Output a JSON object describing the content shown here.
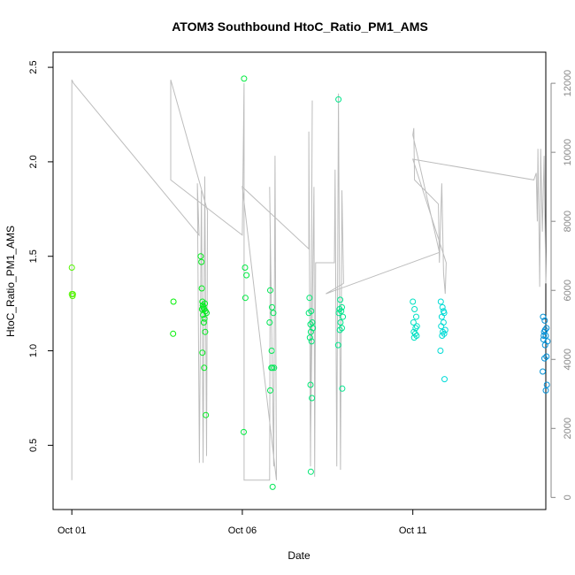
{
  "chart_data": {
    "type": "scatter",
    "title": "ATOM3 Southbound HtoC_Ratio_PM1_AMS",
    "xlabel": "Date",
    "ylabel": "HtoC_Ratio_PM1_AMS",
    "x_ticks": [
      "Oct 01",
      "Oct 06",
      "Oct 11"
    ],
    "x_tick_values": [
      1.0,
      6.0,
      11.0
    ],
    "xlim": [
      0.45,
      14.9
    ],
    "ylim": [
      0.16,
      2.58
    ],
    "y_ticks": [
      0.5,
      1.0,
      1.5,
      2.0,
      2.5
    ],
    "y2lim": [
      -350,
      12900
    ],
    "y2_ticks": [
      0,
      2000,
      4000,
      6000,
      8000,
      10000,
      12000
    ],
    "grid": false,
    "legend": "none",
    "colors": {
      "axis": "#000000",
      "secondary_axis": "#888888",
      "altitude_line": "#bdbdbd"
    },
    "series": [
      {
        "kind": "points",
        "x": [
          1.0,
          1.03,
          1.02,
          1.0,
          3.98,
          3.97,
          4.78,
          4.8,
          4.84,
          4.81,
          4.83,
          4.88,
          4.92,
          4.86,
          4.9,
          4.82,
          4.85,
          4.89,
          4.87,
          4.95,
          4.91,
          4.83,
          4.88,
          4.93,
          6.05,
          6.08,
          6.12,
          6.09,
          6.04,
          6.82,
          6.87,
          6.91,
          6.8,
          6.86,
          6.93,
          6.88,
          6.82,
          6.89,
          6.85,
          7.97,
          8.02,
          7.95,
          8.05,
          8.0,
          8.07,
          8.01,
          7.98,
          8.03,
          8.0,
          8.04,
          8.01,
          8.82,
          8.87,
          8.92,
          8.85,
          8.9,
          8.83,
          8.95,
          8.88,
          8.92,
          8.86,
          8.81,
          8.93
        ],
        "y": [
          1.44,
          1.3,
          1.29,
          1.3,
          1.26,
          1.09,
          1.5,
          1.47,
          1.24,
          1.33,
          1.26,
          1.22,
          1.21,
          1.23,
          1.25,
          1.22,
          1.19,
          1.17,
          1.15,
          1.2,
          1.1,
          0.99,
          0.91,
          0.66,
          2.44,
          1.44,
          1.4,
          1.28,
          0.57,
          1.32,
          1.23,
          1.2,
          1.15,
          1.0,
          0.91,
          0.91,
          0.79,
          0.28,
          0.91,
          1.28,
          1.21,
          1.2,
          1.15,
          1.14,
          1.12,
          1.1,
          1.07,
          1.05,
          0.82,
          0.75,
          0.36,
          2.33,
          1.27,
          1.23,
          1.22,
          1.21,
          1.2,
          1.18,
          1.15,
          1.12,
          1.11,
          1.03,
          0.8
        ],
        "color_scale": "green-to-blue by time"
      },
      {
        "kind": "points",
        "x": [
          11.0,
          11.05,
          11.1,
          11.02,
          11.12,
          11.08,
          11.03,
          11.07,
          11.11,
          11.04,
          11.82,
          11.87,
          11.92,
          11.85,
          11.9,
          11.83,
          11.95,
          11.88,
          11.92,
          11.86,
          11.81,
          11.93,
          11.9,
          14.82,
          14.87,
          14.92,
          14.85,
          14.9,
          14.83,
          14.95,
          14.88,
          14.92,
          14.86,
          14.81,
          14.93,
          14.9,
          14.84,
          14.88
        ],
        "y": [
          1.26,
          1.22,
          1.18,
          1.15,
          1.13,
          1.12,
          1.1,
          1.09,
          1.08,
          1.07,
          1.26,
          1.23,
          1.2,
          1.18,
          1.15,
          1.13,
          1.11,
          1.1,
          1.09,
          1.08,
          1.0,
          0.85,
          1.21,
          1.18,
          1.16,
          1.12,
          1.1,
          1.08,
          1.06,
          1.05,
          1.03,
          0.97,
          0.96,
          0.89,
          0.82,
          0.79,
          1.08,
          1.11
        ],
        "color_scale": "cyan-to-blue by time"
      }
    ],
    "altitude_line": {
      "name": "",
      "points": [
        [
          1.0,
          500
        ],
        [
          1.0,
          12100
        ],
        [
          1.05,
          12000
        ],
        [
          4.73,
          7600
        ],
        [
          4.68,
          9100
        ],
        [
          4.74,
          1000
        ],
        [
          4.8,
          8900
        ],
        [
          4.85,
          1000
        ],
        [
          4.9,
          9300
        ],
        [
          4.95,
          1200
        ],
        [
          4.98,
          8300
        ],
        [
          3.9,
          12100
        ],
        [
          3.9,
          9200
        ],
        [
          6.0,
          7600
        ],
        [
          6.05,
          12000
        ],
        [
          6.05,
          500
        ],
        [
          6.8,
          500
        ],
        [
          6.82,
          7600
        ],
        [
          6.8,
          9000
        ],
        [
          6.92,
          900
        ],
        [
          6.96,
          9900
        ],
        [
          7.0,
          500
        ],
        [
          6.0,
          9000
        ],
        [
          7.95,
          7200
        ],
        [
          7.95,
          10600
        ],
        [
          8.0,
          900
        ],
        [
          8.05,
          11500
        ],
        [
          8.0,
          1500
        ],
        [
          8.1,
          9000
        ],
        [
          8.12,
          600
        ],
        [
          8.15,
          6800
        ],
        [
          8.7,
          6800
        ],
        [
          8.72,
          9500
        ],
        [
          8.77,
          900
        ],
        [
          8.82,
          11700
        ],
        [
          8.88,
          800
        ],
        [
          8.92,
          8900
        ],
        [
          8.97,
          6200
        ],
        [
          8.45,
          5900
        ],
        [
          11.78,
          7100
        ],
        [
          11.0,
          10500
        ],
        [
          11.03,
          10700
        ],
        [
          11.05,
          9200
        ],
        [
          11.75,
          8500
        ],
        [
          11.78,
          6800
        ],
        [
          11.85,
          9100
        ],
        [
          11.9,
          6500
        ],
        [
          11.95,
          5900
        ],
        [
          11.98,
          6800
        ],
        [
          11.0,
          9800
        ],
        [
          14.55,
          9200
        ],
        [
          14.62,
          9400
        ],
        [
          14.65,
          8000
        ],
        [
          14.67,
          10100
        ],
        [
          14.72,
          6100
        ],
        [
          14.75,
          10100
        ],
        [
          14.8,
          7700
        ],
        [
          14.85,
          9900
        ],
        [
          14.9,
          6200
        ]
      ]
    }
  }
}
